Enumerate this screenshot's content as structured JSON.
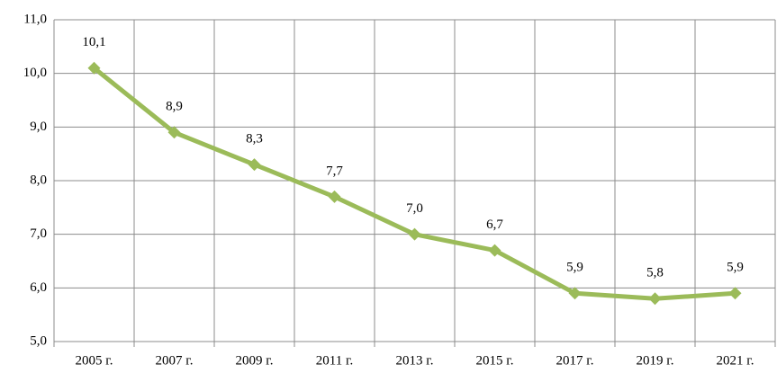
{
  "chart_data": {
    "type": "line",
    "categories": [
      "2005 г.",
      "2007 г.",
      "2009 г.",
      "2011 г.",
      "2013 г.",
      "2015 г.",
      "2017 г.",
      "2019 г.",
      "2021 г."
    ],
    "series": [
      {
        "color": "#9bbb59",
        "values": [
          10.1,
          8.9,
          8.3,
          7.7,
          7.0,
          6.7,
          5.9,
          5.8,
          5.9
        ],
        "value_labels": [
          "10,1",
          "8,9",
          "8,3",
          "7,7",
          "7,0",
          "6,7",
          "5,9",
          "5,8",
          "5,9"
        ]
      }
    ],
    "ylim": [
      5,
      11
    ],
    "yticks": [
      {
        "value": 5,
        "label": "5,0"
      },
      {
        "value": 6,
        "label": "6,0"
      },
      {
        "value": 7,
        "label": "7,0"
      },
      {
        "value": 8,
        "label": "8,0"
      },
      {
        "value": 9,
        "label": "9,0"
      },
      {
        "value": 10,
        "label": "10,0"
      },
      {
        "value": 11,
        "label": "11,0"
      }
    ],
    "grid": true
  }
}
